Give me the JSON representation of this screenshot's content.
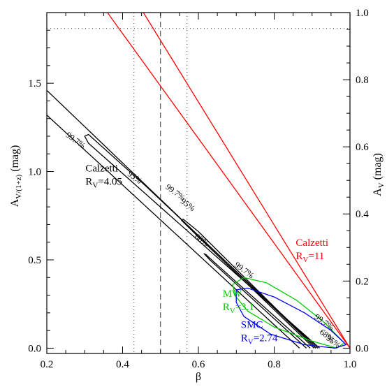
{
  "chart_data": {
    "type": "line",
    "xlabel": "β",
    "ylabel_left_main": "A",
    "ylabel_left_sub": "V/(1+z)",
    "ylabel_left_unit": " (mag)",
    "ylabel_right_main": "A",
    "ylabel_right_sub": "V",
    "ylabel_right_unit": " (mag)",
    "xlim": [
      0.2,
      1.0
    ],
    "ylim_left": [
      -0.03,
      1.9
    ],
    "ylim_right": [
      -0.0158,
      1.0
    ],
    "xticks": [
      {
        "v": 0.2,
        "label": "0.2"
      },
      {
        "v": 0.4,
        "label": "0.4"
      },
      {
        "v": 0.6,
        "label": "0.6"
      },
      {
        "v": 0.8,
        "label": "0.8"
      },
      {
        "v": 1.0,
        "label": "1.0"
      }
    ],
    "yticks_left": [
      {
        "v": 0.0,
        "label": "0.0"
      },
      {
        "v": 0.5,
        "label": "0.5"
      },
      {
        "v": 1.0,
        "label": "1.0"
      },
      {
        "v": 1.5,
        "label": "1.5"
      }
    ],
    "yticks_right": [
      {
        "v": 0.0,
        "label": "0.0"
      },
      {
        "v": 0.2,
        "label": "0.2"
      },
      {
        "v": 0.4,
        "label": "0.4"
      },
      {
        "v": 0.6,
        "label": "0.6"
      },
      {
        "v": 0.8,
        "label": "0.8"
      },
      {
        "v": 1.0,
        "label": "1.0"
      }
    ],
    "reference_lines": [
      {
        "name": "beta-dashed",
        "orient": "v",
        "value": 0.5,
        "style": "dashed"
      },
      {
        "name": "beta-dotted-low",
        "orient": "v",
        "value": 0.43,
        "style": "dotted"
      },
      {
        "name": "beta-dotted-high",
        "orient": "v",
        "value": 0.57,
        "style": "dotted"
      },
      {
        "name": "av-dotted",
        "orient": "h",
        "value": 1.81,
        "style": "dotted"
      }
    ],
    "series": [
      {
        "name": "calzetti-rv4.05-99.7-outer-upper",
        "color": "#000000",
        "x": [
          0.2,
          0.91
        ],
        "y": [
          1.46,
          0.0
        ]
      },
      {
        "name": "calzetti-rv4.05-99.7-outer-lower",
        "color": "#000000",
        "x": [
          0.2,
          0.867
        ],
        "y": [
          1.32,
          0.0
        ]
      },
      {
        "name": "calzetti-rv4.05-99.7-inner",
        "color": "#000000",
        "x": [
          0.915,
          0.46,
          0.31,
          0.3,
          0.31,
          0.92
        ],
        "y": [
          0.0,
          0.92,
          1.21,
          1.2,
          1.16,
          0.0
        ]
      },
      {
        "name": "calzetti-rv4.05-95",
        "color": "#000000",
        "x": [
          0.905,
          0.6,
          0.555,
          0.56,
          0.6,
          0.91
        ],
        "y": [
          0.0,
          0.63,
          0.725,
          0.73,
          0.66,
          0.0
        ]
      },
      {
        "name": "calzetti-rv4.05-68",
        "color": "#000000",
        "x": [
          0.885,
          0.63,
          0.615,
          0.62,
          0.64,
          0.895
        ],
        "y": [
          0.0,
          0.5,
          0.535,
          0.53,
          0.49,
          0.0
        ]
      },
      {
        "name": "calzetti-rv11-upper",
        "color": "#ff0000",
        "x": [
          0.36,
          1.0
        ],
        "y": [
          1.9,
          0.0
        ]
      },
      {
        "name": "calzetti-rv11-lower",
        "color": "#ff0000",
        "x": [
          0.455,
          1.0
        ],
        "y": [
          1.9,
          0.0
        ]
      },
      {
        "name": "mw-rv3.1",
        "color": "#00cc00",
        "x": [
          0.69,
          0.72,
          0.78,
          0.86,
          0.93,
          0.985,
          0.965,
          0.9,
          0.8,
          0.73,
          0.7,
          0.69
        ],
        "y": [
          0.36,
          0.4,
          0.37,
          0.27,
          0.15,
          0.03,
          0.0,
          0.04,
          0.12,
          0.21,
          0.29,
          0.36
        ]
      },
      {
        "name": "smc-rv2.74",
        "color": "#0000ff",
        "x": [
          0.7,
          0.73,
          0.8,
          0.88,
          0.95,
          0.99,
          0.96,
          0.88,
          0.79,
          0.72,
          0.7,
          0.7
        ],
        "y": [
          0.33,
          0.34,
          0.29,
          0.2,
          0.1,
          0.02,
          0.0,
          0.02,
          0.08,
          0.18,
          0.26,
          0.33
        ]
      }
    ],
    "annotations": [
      {
        "name": "label-calzetti-black",
        "lines": [
          {
            "text": "Calzetti",
            "sub": ""
          },
          {
            "text": "R",
            "sub": "V",
            "tail": "=4.05"
          }
        ],
        "color": "#000000",
        "x": 0.302,
        "y": 1.0
      },
      {
        "name": "label-calzetti-red",
        "lines": [
          {
            "text": "Calzetti",
            "sub": ""
          },
          {
            "text": "R",
            "sub": "V",
            "tail": "=11"
          }
        ],
        "color": "#ff0000",
        "x": 0.857,
        "y": 0.58
      },
      {
        "name": "label-mw",
        "lines": [
          {
            "text": "MW",
            "sub": ""
          },
          {
            "text": "R",
            "sub": "V",
            "tail": "=3.1"
          }
        ],
        "color": "#00cc00",
        "x": 0.664,
        "y": 0.29
      },
      {
        "name": "label-smc",
        "lines": [
          {
            "text": "SMC",
            "sub": ""
          },
          {
            "text": "R",
            "sub": "V",
            "tail": "=2.74"
          }
        ],
        "color": "#0000ff",
        "x": 0.712,
        "y": 0.115
      }
    ],
    "contour_labels": [
      {
        "text": "99.7%",
        "x": 0.272,
        "y": 1.165,
        "angle": 36
      },
      {
        "text": "95%",
        "x": 0.428,
        "y": 0.955,
        "angle": 36
      },
      {
        "text": "99.7%",
        "x": 0.535,
        "y": 0.87,
        "angle": 36
      },
      {
        "text": "95%",
        "x": 0.568,
        "y": 0.8,
        "angle": 36
      },
      {
        "text": "68%",
        "x": 0.605,
        "y": 0.6,
        "angle": 36
      },
      {
        "text": "99.7%",
        "x": 0.717,
        "y": 0.43,
        "angle": 36
      },
      {
        "text": "99.7%",
        "x": 0.928,
        "y": 0.135,
        "angle": 36
      },
      {
        "text": "68%",
        "x": 0.935,
        "y": 0.06,
        "angle": 36
      },
      {
        "text": "95%",
        "x": 0.952,
        "y": 0.025,
        "angle": 36
      }
    ]
  }
}
